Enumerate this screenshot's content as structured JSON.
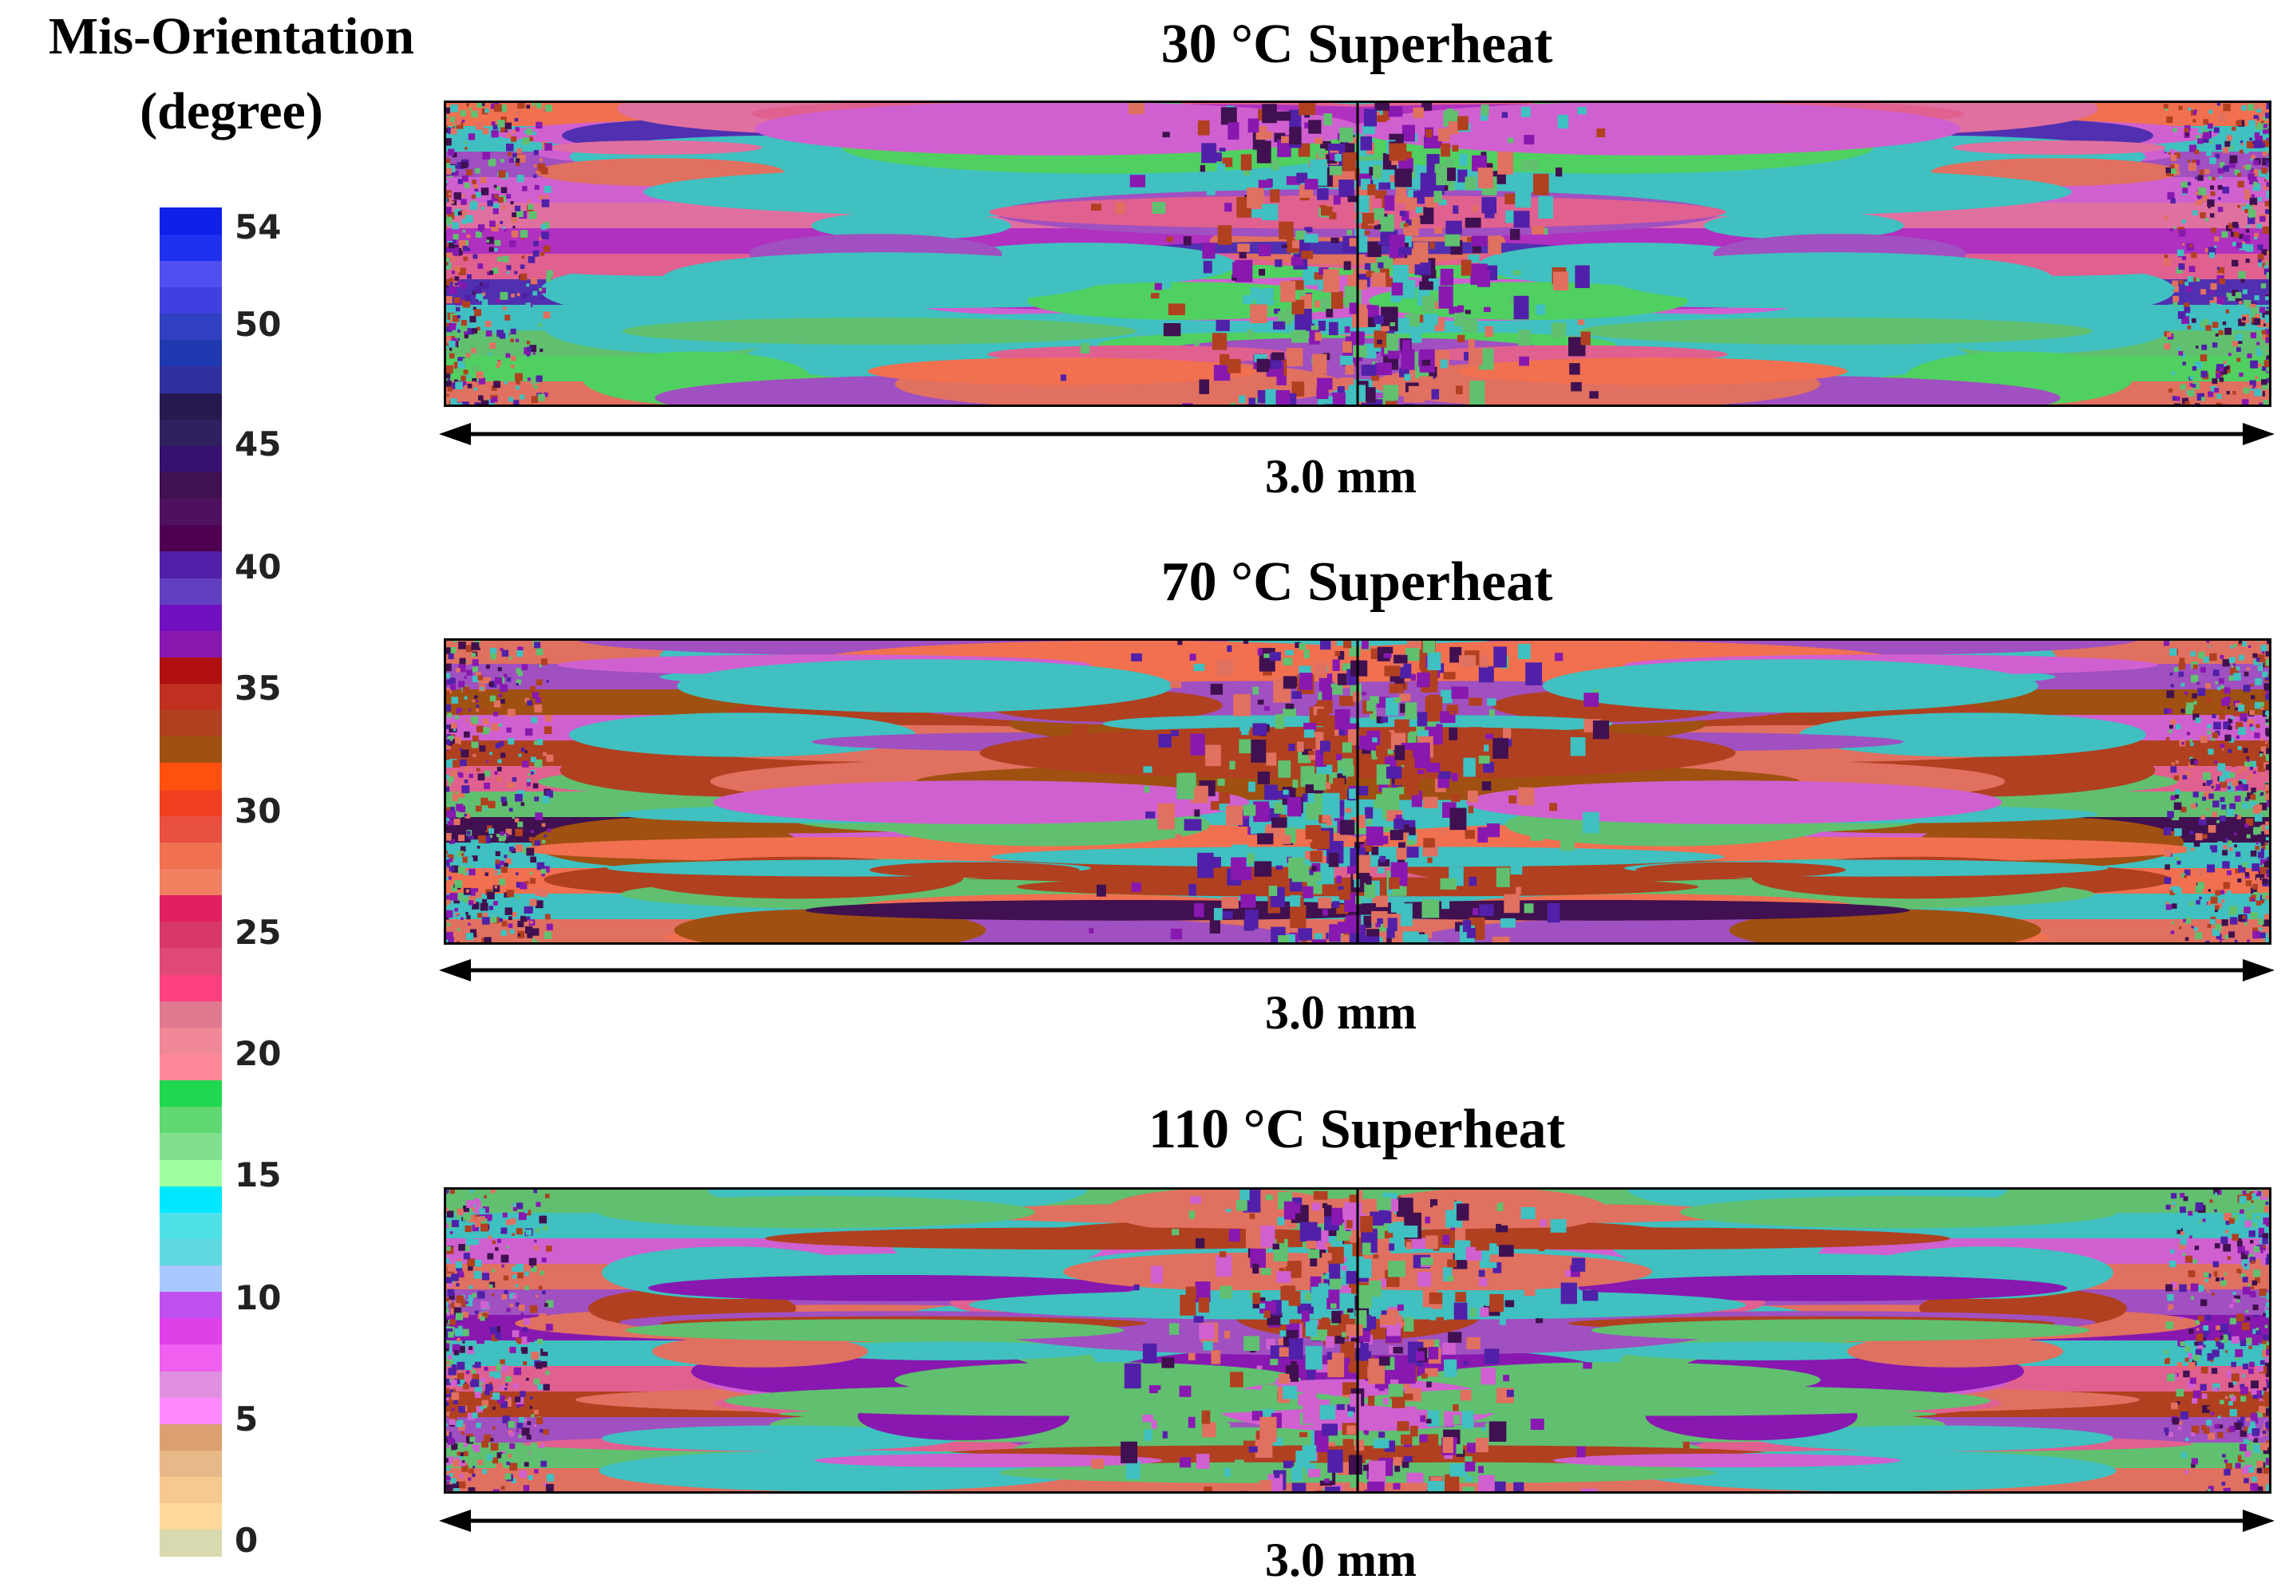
{
  "legend": {
    "title_line1": "Mis-Orientation",
    "title_line2": "(degree)",
    "ticks": [
      "54",
      "50",
      "45",
      "40",
      "35",
      "30",
      "25",
      "20",
      "15",
      "10",
      "5",
      "0"
    ],
    "colors": [
      "#d9d9b0",
      "#ffd89a",
      "#f7c890",
      "#e8b888",
      "#dca070",
      "#ff88ff",
      "#e090e0",
      "#f060f0",
      "#e040e8",
      "#c050f0",
      "#a8c8ff",
      "#60d8e0",
      "#50e0e8",
      "#00e8ff",
      "#a0ffa0",
      "#80e090",
      "#60d870",
      "#20d850",
      "#ff8898",
      "#f08898",
      "#e07890",
      "#ff4080",
      "#e04878",
      "#d83868",
      "#e02060",
      "#f08060",
      "#f07050",
      "#e85040",
      "#f04020",
      "#ff5010",
      "#a05010",
      "#b04020",
      "#c03020",
      "#b01010",
      "#8818b0",
      "#7010c0",
      "#6040c0",
      "#5020a8",
      "#500050",
      "#501060",
      "#401050",
      "#381070",
      "#302060",
      "#281850",
      "#3030a0",
      "#2038b0",
      "#3040c0",
      "#4040e0",
      "#5050f0",
      "#2030f0",
      "#1020e8"
    ]
  },
  "panels": [
    {
      "title": "30  °C Superheat",
      "scale_label": "3.0 mm",
      "bands": [
        "#f07050",
        "#40c0c0",
        "#a050c0",
        "#d060d0",
        "#e070a0",
        "#b030c0",
        "#e06090",
        "#5030b0",
        "#40c0c0",
        "#60c070",
        "#50d060",
        "#e07060"
      ],
      "core_colors": [
        "#8818b0",
        "#5020a8",
        "#b04020",
        "#40c0c0",
        "#e07060",
        "#401050",
        "#60c070"
      ]
    },
    {
      "title": "70  °C Superheat",
      "scale_label": "3.0 mm",
      "bands": [
        "#e07060",
        "#a050c0",
        "#a05010",
        "#d060d0",
        "#b04020",
        "#e06090",
        "#60c070",
        "#401050",
        "#40c0c0",
        "#f07050",
        "#40c0c0",
        "#e07060"
      ],
      "core_colors": [
        "#8818b0",
        "#5020a8",
        "#401050",
        "#e07060",
        "#40c0c0",
        "#60c070",
        "#b04020"
      ]
    },
    {
      "title": "110 °C Superheat",
      "scale_label": "3.0 mm",
      "bands": [
        "#60c070",
        "#40c0c0",
        "#d060d0",
        "#e07060",
        "#a050c0",
        "#8818b0",
        "#40c0c0",
        "#e06090",
        "#b04020",
        "#a050c0",
        "#60c070",
        "#e07060"
      ],
      "core_colors": [
        "#8818b0",
        "#5020a8",
        "#401050",
        "#e07060",
        "#40c0c0",
        "#60c070",
        "#b04020",
        "#d060d0"
      ]
    }
  ]
}
